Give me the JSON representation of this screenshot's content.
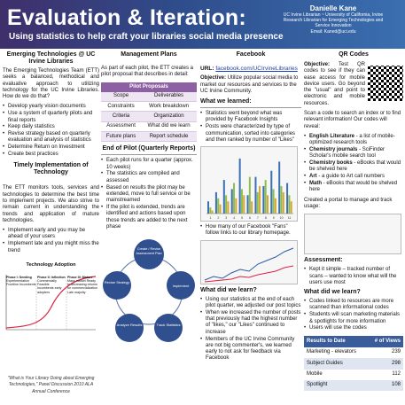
{
  "header": {
    "title": "Evaluation & Iteration:",
    "subtitle": "Using statistics to help craft your libraries social media presence",
    "author_name": "Danielle Kane",
    "author_line1": "UC Irvine Librarian ~ University of California, Irvine",
    "author_line2": "Research Librarian for Emerging Technologies and",
    "author_line3": "Service Innovation",
    "author_email": "Email: Kaned@uci.edu"
  },
  "col1": {
    "title": "Emerging Technologies @ UC Irvine Libraries",
    "intro": "The Emerging Technologies Team (ETT) seeks a balanced, methodical and evaluative approach to utilizing technology for the UC Irvine Libraries. How do we do that?",
    "bullets": [
      "Develop yearly vision documents",
      "Use a system of quarterly pilots and final reports",
      "Keep daily statistics",
      "Revise strategy based on quarterly evaluation and analysis of statistics",
      "Determine Return on Investment",
      "Create best practices"
    ],
    "timely_title": "Timely Implementation of Technology",
    "timely_text": "The ETT monitors tools, services and technologies to determine the best time to implement projects. We also strive to remain current in understanding the trends and application of mature technologies.",
    "timely_bullets": [
      "Implement early and you may be ahead of your users",
      "Implement late and you might miss the trend"
    ],
    "adoption_title": "Technology Adoption",
    "phases": [
      {
        "name": "Phase I: Seeding",
        "text": "Experimentation Frontline Incumbents"
      },
      {
        "name": "Phase II: Inflection",
        "text": "Commercially Feasible Incumbents early adopters"
      },
      {
        "name": "Phase III: Mature",
        "text": "Mass market Ready to decreasing returns for commercialization Late majority"
      }
    ],
    "citation": "\"What is Your Library Doing about Emerging Technologies,\" Panel Discussion 2010 ALA Annual Conference"
  },
  "col2": {
    "mgmt_title": "Management Plans",
    "mgmt_text": "As part of each pilot, the ETT creates a pilot proposal that describes in detail:",
    "table_title": "Pilot Proposals",
    "table_rows": [
      [
        "Scope",
        "Deliverables"
      ],
      [
        "Constraints",
        "Work breakdown"
      ],
      [
        "Criteria",
        "Organization"
      ],
      [
        "Assessment",
        "What did we learn"
      ],
      [
        "Future plans",
        "Report schedule"
      ]
    ],
    "end_title": "End of Pilot (Quarterly Reports)",
    "end_bullets": [
      "Each pilot runs for a quarter (approx. 10 weeks)",
      "The statistics are compiled and assessed",
      "Based on results the pilot may be extended, move to full service or be mainstreamed",
      "If the pilot is extended, trends are identified and actions based upon those trends are added to the next phase"
    ],
    "cycle": [
      "Create / Revise Assessment Plan",
      "Implement",
      "Track Statistics",
      "Analyze Results",
      "Revise Strategy"
    ]
  },
  "col3": {
    "title": "Facebook",
    "url_label": "URL:",
    "url": "facebook.com/UCIrvineLibraries",
    "objective_label": "Objective:",
    "objective": "Utilize popular social media to market our resources and services to the UC Irvine Community.",
    "learned_title": "What we learned:",
    "learned": [
      "Statistics went beyond what was provided by Facebook Insights",
      "Posts were characterized by type of communication, sorted into categories and then ranked by number of \"Likes\""
    ],
    "chart_caption": "How many of our Facebook \"Fans\" follow links to our library homepage.",
    "learned2_title": "What did we learn?",
    "learned2": [
      "Using our statistics at the end of each pilot quarter, we adjusted our post topics",
      "When we increased the number of posts that previously had the highest number of \"likes,\" our \"Likes\" continued to increase",
      "Members of the UC Irvine Community are not big commenter's, we learned early to not ask for feedback via Facebook"
    ]
  },
  "col4": {
    "title": "QR Codes",
    "objective_label": "Objective:",
    "objective": "Test QR codes to see if they can ease access for mobile device users. Go beyond the \"usual\" and point to electronic and mobile resources.",
    "scan_text": "Scan a code to search an index or to find relevant information! Our codes will reveal:",
    "codes": [
      {
        "name": "English Literature",
        "text": " - a list of mobile-optimized research tools"
      },
      {
        "name": "Chemistry journals",
        "text": " - SciFinder Scholar's mobile search tool"
      },
      {
        "name": "Chemistry books",
        "text": " - eBooks that would be shelved here"
      },
      {
        "name": "Art",
        "text": " - a guide to Art call numbers"
      },
      {
        "name": "Math",
        "text": " - eBooks that would be shelved here"
      }
    ],
    "portal_text": "Created a portal to manage and track usage:",
    "assessment_title": "Assessment:",
    "assessment": [
      "Kept it simple – tracked number of scans – wanted to know what will the users use most"
    ],
    "learned_title": "What did we learn?",
    "learned": [
      "Codes linked to resources are more scanned than informational codes",
      "Students will scan marketing materials & spotlights for more information",
      "Users will use the codes"
    ],
    "results_header": [
      "Results to Date",
      "# of Views"
    ],
    "results": [
      [
        "Marketing - elevators",
        "239"
      ],
      [
        "Subject Guides",
        "298"
      ],
      [
        "Mobile",
        "112"
      ],
      [
        "Spotlight",
        "108"
      ]
    ]
  },
  "chart_data": {
    "type": "bar",
    "title": "",
    "xlabel": "",
    "ylabel": "",
    "categories": [
      "1",
      "2",
      "3",
      "4",
      "5",
      "6",
      "7",
      "8",
      "9",
      "10",
      "11"
    ],
    "series": [
      {
        "values": [
          20,
          35,
          55,
          40,
          90,
          30,
          60,
          45,
          70,
          85,
          50
        ]
      },
      {
        "values": [
          10,
          25,
          30,
          50,
          40,
          60,
          35,
          55,
          40,
          45,
          30
        ]
      },
      {
        "values": [
          5,
          15,
          20,
          25,
          30,
          20,
          45,
          30,
          25,
          35,
          20
        ]
      }
    ],
    "colors": [
      "#3b6fb6",
      "#8bbf4a",
      "#d9a33a"
    ],
    "ylim": [
      0,
      100
    ]
  }
}
